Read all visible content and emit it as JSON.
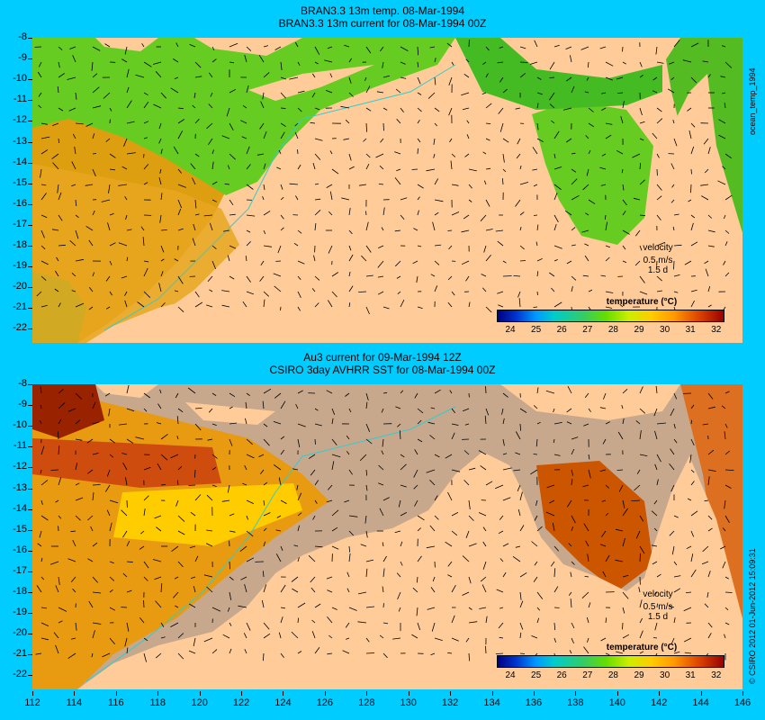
{
  "top_panel": {
    "title_line1": "BRAN3.3 13m temp. 08-Mar-1994",
    "title_line2": "BRAN3.3 13m current for 08-Mar-1994 00Z",
    "side_label": "ocean_temp_1994",
    "velocity_label": "velocity",
    "velocity_value": "0.5 m/s",
    "velocity_duration": "1.5 d",
    "colorbar_title": "temperature (°C)"
  },
  "bottom_panel": {
    "title_line1": "Au3 current for 09-Mar-1994 12Z",
    "title_line2": "CSIRO 3day AVHRR SST for 08-Mar-1994 00Z",
    "side_label": "© CSIRO 2012  01-Jun-2012 15:09:31",
    "velocity_label": "velocity",
    "velocity_value": "0.5 m/s",
    "velocity_duration": "1.5 d",
    "colorbar_title": "temperature (°C)"
  },
  "lat_ticks": [
    "-8",
    "-9",
    "-10",
    "-11",
    "-12",
    "-13",
    "-14",
    "-15",
    "-16",
    "-17",
    "-18",
    "-19",
    "-20",
    "-21",
    "-22"
  ],
  "lon_ticks": [
    "112",
    "114",
    "116",
    "118",
    "120",
    "122",
    "124",
    "126",
    "128",
    "130",
    "132",
    "134",
    "136",
    "138",
    "140",
    "142",
    "144",
    "146"
  ],
  "colorbar_ticks": [
    "24",
    "25",
    "26",
    "27",
    "28",
    "29",
    "30",
    "31",
    "32"
  ],
  "colors": {
    "background": "#00ccff",
    "land": "#ffcc99",
    "missing_data": "#c8a88c",
    "warm": "#ff9900",
    "hot": "#cc3300",
    "mild": "#ffcc00",
    "cool": "#66cc00"
  }
}
